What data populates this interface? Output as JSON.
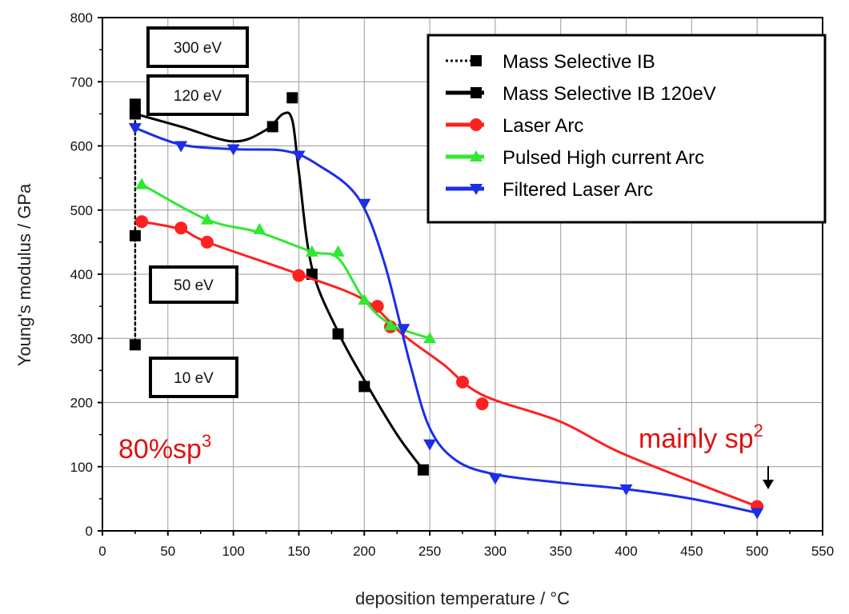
{
  "chart_data": {
    "type": "line",
    "title": "",
    "xlabel": "deposition temperature / °C",
    "ylabel": "Young's modulus / GPa",
    "xlim": [
      0,
      550
    ],
    "ylim": [
      0,
      800
    ],
    "xticks": [
      0,
      50,
      100,
      150,
      200,
      250,
      300,
      350,
      400,
      450,
      500,
      550
    ],
    "yticks": [
      0,
      100,
      200,
      300,
      400,
      500,
      600,
      700,
      800
    ],
    "grid": true,
    "legend_position": "top-right",
    "series": [
      {
        "name": "Mass Selective IB",
        "color": "#000000",
        "marker": "square",
        "line": "dotted",
        "points": [
          [
            25,
            665
          ],
          [
            25,
            650
          ],
          [
            25,
            460
          ],
          [
            25,
            290
          ]
        ],
        "curve": [
          [
            25,
            665
          ],
          [
            25,
            650
          ],
          [
            25,
            460
          ],
          [
            25,
            290
          ]
        ]
      },
      {
        "name": "Mass Selective IB 120eV",
        "color": "#000000",
        "marker": "square",
        "line": "solid",
        "points": [
          [
            25,
            650
          ],
          [
            130,
            630
          ],
          [
            145,
            675
          ],
          [
            160,
            400
          ],
          [
            180,
            307
          ],
          [
            200,
            225
          ],
          [
            245,
            95
          ]
        ],
        "curve": [
          [
            25,
            650
          ],
          [
            60,
            630
          ],
          [
            100,
            607
          ],
          [
            125,
            625
          ],
          [
            138,
            650
          ],
          [
            145,
            640
          ],
          [
            150,
            560
          ],
          [
            160,
            410
          ],
          [
            180,
            310
          ],
          [
            200,
            235
          ],
          [
            225,
            150
          ],
          [
            245,
            95
          ]
        ]
      },
      {
        "name": "Laser Arc",
        "color": "#ff2020",
        "marker": "circle",
        "line": "solid",
        "points": [
          [
            30,
            482
          ],
          [
            60,
            472
          ],
          [
            80,
            450
          ],
          [
            150,
            398
          ],
          [
            210,
            350
          ],
          [
            220,
            318
          ],
          [
            275,
            232
          ],
          [
            290,
            198
          ],
          [
            500,
            38
          ]
        ],
        "curve": [
          [
            30,
            482
          ],
          [
            60,
            470
          ],
          [
            80,
            450
          ],
          [
            150,
            400
          ],
          [
            200,
            360
          ],
          [
            230,
            305
          ],
          [
            260,
            260
          ],
          [
            290,
            212
          ],
          [
            350,
            170
          ],
          [
            400,
            118
          ],
          [
            500,
            38
          ]
        ]
      },
      {
        "name": "Pulsed High current Arc",
        "color": "#30e830",
        "marker": "triangle-up",
        "line": "solid",
        "points": [
          [
            30,
            540
          ],
          [
            80,
            485
          ],
          [
            120,
            470
          ],
          [
            160,
            435
          ],
          [
            180,
            435
          ],
          [
            200,
            360
          ],
          [
            220,
            320
          ],
          [
            250,
            300
          ]
        ],
        "curve": [
          [
            30,
            540
          ],
          [
            80,
            485
          ],
          [
            120,
            465
          ],
          [
            160,
            435
          ],
          [
            180,
            425
          ],
          [
            200,
            360
          ],
          [
            220,
            322
          ],
          [
            250,
            300
          ]
        ]
      },
      {
        "name": "Filtered Laser Arc",
        "color": "#1c2ee8",
        "marker": "triangle-down",
        "line": "solid",
        "points": [
          [
            25,
            628
          ],
          [
            60,
            600
          ],
          [
            100,
            595
          ],
          [
            150,
            585
          ],
          [
            200,
            510
          ],
          [
            230,
            315
          ],
          [
            250,
            135
          ],
          [
            300,
            82
          ],
          [
            400,
            65
          ],
          [
            500,
            28
          ]
        ],
        "curve": [
          [
            25,
            628
          ],
          [
            60,
            602
          ],
          [
            100,
            595
          ],
          [
            140,
            592
          ],
          [
            165,
            570
          ],
          [
            195,
            520
          ],
          [
            215,
            420
          ],
          [
            235,
            260
          ],
          [
            250,
            160
          ],
          [
            270,
            110
          ],
          [
            300,
            88
          ],
          [
            350,
            75
          ],
          [
            400,
            65
          ],
          [
            450,
            50
          ],
          [
            500,
            28
          ]
        ]
      }
    ],
    "annotations": {
      "energy_labels": [
        "300 eV",
        "120 eV",
        "50 eV",
        "10 eV"
      ],
      "left_note": {
        "text": "80%sp",
        "sup": "3"
      },
      "right_note": {
        "text": "mainly sp",
        "sup": "2"
      }
    }
  }
}
